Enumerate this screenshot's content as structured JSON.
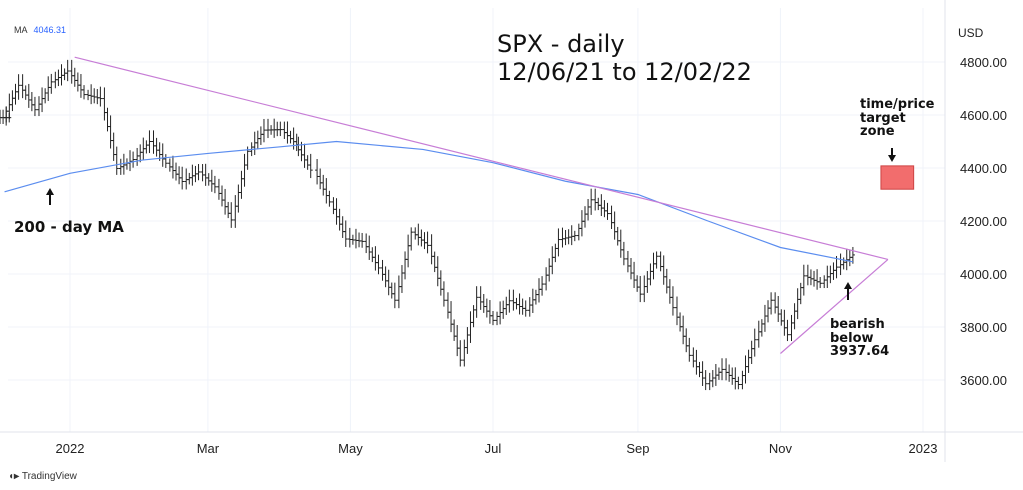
{
  "chart_data": {
    "type": "ohlc-bar",
    "title": "SPX - daily",
    "subtitle": "12/06/21 to 12/02/22",
    "currency_label": "USD",
    "indicator": {
      "label": "MA",
      "value": "4046.31",
      "color": "#5b8def"
    },
    "y_ticks": [
      "4800.00",
      "4600.00",
      "4400.00",
      "4200.00",
      "4000.00",
      "3800.00",
      "3600.00"
    ],
    "y_tick_values": [
      4800,
      4600,
      4400,
      4200,
      4000,
      3800,
      3600
    ],
    "x_ticks": [
      {
        "label": "2022",
        "date": "2022-01-01"
      },
      {
        "label": "Mar",
        "date": "2022-03-01"
      },
      {
        "label": "May",
        "date": "2022-05-01"
      },
      {
        "label": "Jul",
        "date": "2022-07-01"
      },
      {
        "label": "Sep",
        "date": "2022-09-01"
      },
      {
        "label": "Nov",
        "date": "2022-11-01"
      },
      {
        "label": "2023",
        "date": "2023-01-01"
      }
    ],
    "ylim": [
      3450,
      4900
    ],
    "xlim": [
      "2021-12-04",
      "2023-01-10"
    ],
    "weekly_closes": [
      [
        "2021-12-06",
        4590
      ],
      [
        "2021-12-10",
        4712
      ],
      [
        "2021-12-17",
        4620
      ],
      [
        "2021-12-24",
        4725
      ],
      [
        "2021-12-31",
        4766
      ],
      [
        "2022-01-07",
        4677
      ],
      [
        "2022-01-14",
        4662
      ],
      [
        "2022-01-21",
        4398
      ],
      [
        "2022-01-28",
        4432
      ],
      [
        "2022-02-04",
        4500
      ],
      [
        "2022-02-11",
        4418
      ],
      [
        "2022-02-18",
        4349
      ],
      [
        "2022-02-25",
        4385
      ],
      [
        "2022-03-04",
        4329
      ],
      [
        "2022-03-11",
        4204
      ],
      [
        "2022-03-18",
        4463
      ],
      [
        "2022-03-25",
        4543
      ],
      [
        "2022-04-01",
        4545
      ],
      [
        "2022-04-08",
        4488
      ],
      [
        "2022-04-14",
        4392
      ],
      [
        "2022-04-22",
        4272
      ],
      [
        "2022-04-29",
        4132
      ],
      [
        "2022-05-06",
        4123
      ],
      [
        "2022-05-13",
        4023
      ],
      [
        "2022-05-20",
        3901
      ],
      [
        "2022-05-27",
        4158
      ],
      [
        "2022-06-03",
        4108
      ],
      [
        "2022-06-10",
        3901
      ],
      [
        "2022-06-17",
        3675
      ],
      [
        "2022-06-24",
        3912
      ],
      [
        "2022-07-01",
        3825
      ],
      [
        "2022-07-08",
        3899
      ],
      [
        "2022-07-15",
        3863
      ],
      [
        "2022-07-22",
        3962
      ],
      [
        "2022-07-29",
        4130
      ],
      [
        "2022-08-05",
        4145
      ],
      [
        "2022-08-12",
        4280
      ],
      [
        "2022-08-19",
        4228
      ],
      [
        "2022-08-26",
        4057
      ],
      [
        "2022-09-02",
        3924
      ],
      [
        "2022-09-09",
        4067
      ],
      [
        "2022-09-16",
        3873
      ],
      [
        "2022-09-23",
        3693
      ],
      [
        "2022-09-30",
        3586
      ],
      [
        "2022-10-07",
        3640
      ],
      [
        "2022-10-14",
        3583
      ],
      [
        "2022-10-21",
        3752
      ],
      [
        "2022-10-28",
        3901
      ],
      [
        "2022-11-04",
        3771
      ],
      [
        "2022-11-11",
        3993
      ],
      [
        "2022-11-18",
        3965
      ],
      [
        "2022-11-25",
        4026
      ],
      [
        "2022-12-02",
        4072
      ]
    ],
    "ma200": [
      [
        "2021-12-04",
        4310
      ],
      [
        "2022-01-01",
        4380
      ],
      [
        "2022-02-01",
        4430
      ],
      [
        "2022-03-01",
        4455
      ],
      [
        "2022-04-01",
        4480
      ],
      [
        "2022-04-25",
        4500
      ],
      [
        "2022-06-01",
        4470
      ],
      [
        "2022-07-01",
        4420
      ],
      [
        "2022-08-01",
        4350
      ],
      [
        "2022-09-01",
        4300
      ],
      [
        "2022-10-01",
        4200
      ],
      [
        "2022-11-01",
        4100
      ],
      [
        "2022-12-02",
        4046
      ]
    ],
    "trendlines": [
      {
        "name": "upper",
        "from": [
          "2022-01-03",
          4818
        ],
        "to": [
          "2022-12-17",
          4055
        ]
      },
      {
        "name": "lower",
        "from": [
          "2022-11-01",
          3700
        ],
        "to": [
          "2022-12-17",
          4055
        ]
      }
    ],
    "target_zone": {
      "from": "2022-12-14",
      "to": "2022-12-28",
      "low": 4320,
      "high": 4408,
      "color": "#f26d6d"
    },
    "annotations": {
      "ma_label": "200 - day MA",
      "target_lines": [
        "time/price",
        "target",
        "zone"
      ],
      "bearish_lines": [
        "bearish",
        "below",
        "3937.64"
      ]
    }
  },
  "footer": {
    "brand": "TradingView"
  }
}
